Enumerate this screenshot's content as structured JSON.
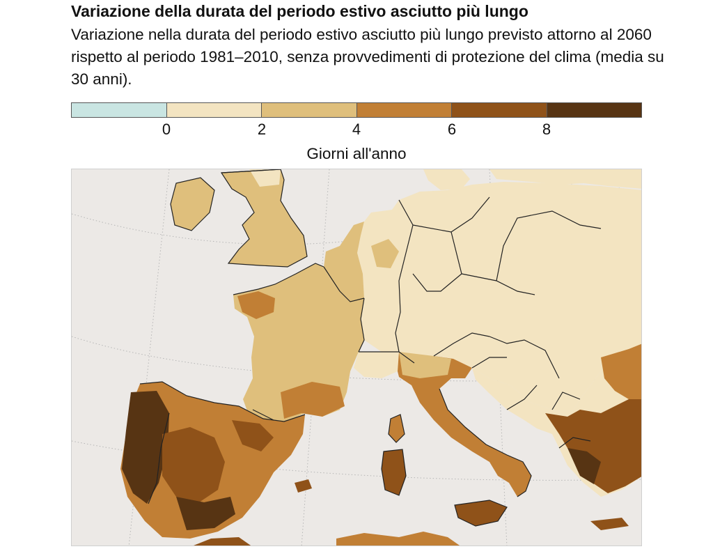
{
  "title": "Variazione della durata del periodo estivo asciutto più lungo",
  "subtitle": "Variazione nella durata del periodo estivo asciutto più lungo previsto attorno al 2060 rispetto al periodo 1981–2010, senza provvedimenti di protezione del clima (media su 30 anni).",
  "legend": {
    "unit_label": "Giorni all'anno",
    "ticks": [
      "0",
      "2",
      "4",
      "6",
      "8"
    ],
    "classes": [
      {
        "range": "< 0",
        "color": "#c9e5e2"
      },
      {
        "range": "0–2",
        "color": "#f3e4c1"
      },
      {
        "range": "2–4",
        "color": "#dfbf7c"
      },
      {
        "range": "4–6",
        "color": "#c17f35"
      },
      {
        "range": "6–8",
        "color": "#8f5219"
      },
      {
        "range": "> 8",
        "color": "#573413"
      }
    ]
  },
  "map": {
    "region": "Europa occidentale e meridionale",
    "colors": {
      "sea": "#ece9e6",
      "border": "#222222",
      "graticule": "#b5b5b5"
    }
  }
}
